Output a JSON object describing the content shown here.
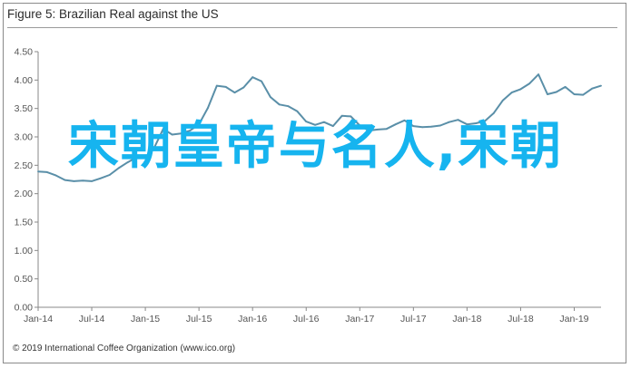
{
  "figure": {
    "title": "Figure 5: Brazilian Real against the US",
    "footer": "© 2019 International Coffee Organization (www.ico.org)",
    "overlay_text": "宋朝皇帝与名人,宋朝"
  },
  "colors": {
    "line": "#5a8fa8",
    "overlay": "#16b4ef",
    "axis": "#888888"
  },
  "chart_data": {
    "type": "line",
    "title": "Figure 5: Brazilian Real against the US",
    "xlabel": "",
    "ylabel": "",
    "ylim": [
      0.0,
      4.5
    ],
    "yticks": [
      0.0,
      0.5,
      1.0,
      1.5,
      2.0,
      2.5,
      3.0,
      3.5,
      4.0,
      4.5
    ],
    "ytick_labels": [
      "0.00",
      "0.50",
      "1.00",
      "1.50",
      "2.00",
      "2.50",
      "3.00",
      "3.50",
      "4.00",
      "4.50"
    ],
    "xlim": [
      "2014-01",
      "2019-04"
    ],
    "xtick_labels": [
      "Jan-14",
      "Jul-14",
      "Jan-15",
      "Jul-15",
      "Jan-16",
      "Jul-16",
      "Jan-17",
      "Jul-17",
      "Jan-18",
      "Jul-18",
      "Jan-19"
    ],
    "grid": false,
    "series": [
      {
        "values": [
          [
            "2014-01",
            2.39
          ],
          [
            "2014-02",
            2.38
          ],
          [
            "2014-03",
            2.32
          ],
          [
            "2014-04",
            2.24
          ],
          [
            "2014-05",
            2.22
          ],
          [
            "2014-06",
            2.23
          ],
          [
            "2014-07",
            2.22
          ],
          [
            "2014-08",
            2.27
          ],
          [
            "2014-09",
            2.33
          ],
          [
            "2014-10",
            2.45
          ],
          [
            "2014-11",
            2.55
          ],
          [
            "2014-12",
            2.64
          ],
          [
            "2015-01",
            2.63
          ],
          [
            "2015-02",
            2.81
          ],
          [
            "2015-03",
            3.14
          ],
          [
            "2015-04",
            3.04
          ],
          [
            "2015-05",
            3.06
          ],
          [
            "2015-06",
            3.11
          ],
          [
            "2015-07",
            3.22
          ],
          [
            "2015-08",
            3.51
          ],
          [
            "2015-09",
            3.9
          ],
          [
            "2015-10",
            3.88
          ],
          [
            "2015-11",
            3.78
          ],
          [
            "2015-12",
            3.87
          ],
          [
            "2016-01",
            4.05
          ],
          [
            "2016-02",
            3.98
          ],
          [
            "2016-03",
            3.7
          ],
          [
            "2016-04",
            3.57
          ],
          [
            "2016-05",
            3.54
          ],
          [
            "2016-06",
            3.45
          ],
          [
            "2016-07",
            3.27
          ],
          [
            "2016-08",
            3.21
          ],
          [
            "2016-09",
            3.26
          ],
          [
            "2016-10",
            3.19
          ],
          [
            "2016-11",
            3.37
          ],
          [
            "2016-12",
            3.36
          ],
          [
            "2017-01",
            3.2
          ],
          [
            "2017-02",
            3.11
          ],
          [
            "2017-03",
            3.13
          ],
          [
            "2017-04",
            3.14
          ],
          [
            "2017-05",
            3.22
          ],
          [
            "2017-06",
            3.29
          ],
          [
            "2017-07",
            3.19
          ],
          [
            "2017-08",
            3.17
          ],
          [
            "2017-09",
            3.18
          ],
          [
            "2017-10",
            3.2
          ],
          [
            "2017-11",
            3.26
          ],
          [
            "2017-12",
            3.3
          ],
          [
            "2018-01",
            3.22
          ],
          [
            "2018-02",
            3.24
          ],
          [
            "2018-03",
            3.28
          ],
          [
            "2018-04",
            3.42
          ],
          [
            "2018-05",
            3.64
          ],
          [
            "2018-06",
            3.78
          ],
          [
            "2018-07",
            3.84
          ],
          [
            "2018-08",
            3.94
          ],
          [
            "2018-09",
            4.1
          ],
          [
            "2018-10",
            3.75
          ],
          [
            "2018-11",
            3.79
          ],
          [
            "2018-12",
            3.88
          ],
          [
            "2019-01",
            3.75
          ],
          [
            "2019-02",
            3.74
          ],
          [
            "2019-03",
            3.85
          ],
          [
            "2019-04",
            3.9
          ]
        ]
      }
    ]
  }
}
